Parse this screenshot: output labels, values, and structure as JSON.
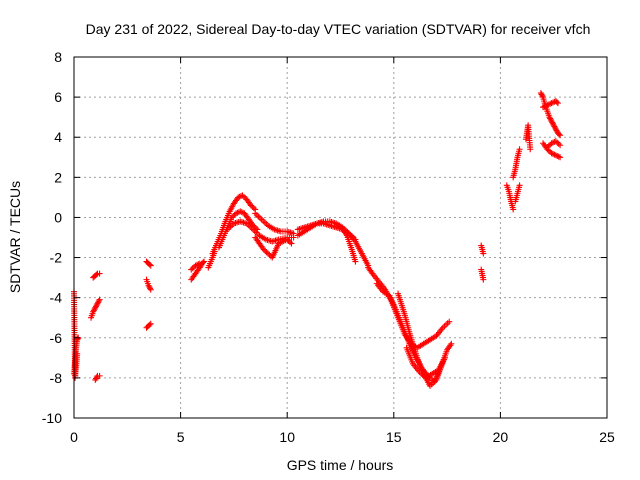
{
  "chart_data": {
    "type": "scatter",
    "title": "Day 231 of 2022, Sidereal Day-to-day VTEC variation (SDTVAR) for receiver vfch",
    "xlabel": "GPS time / hours",
    "ylabel": "SDTVAR / TECUs",
    "xlim": [
      0,
      25
    ],
    "ylim": [
      -10,
      8
    ],
    "x_ticks": [
      0,
      5,
      10,
      15,
      20,
      25
    ],
    "y_ticks": [
      -10,
      -8,
      -6,
      -4,
      -2,
      0,
      2,
      4,
      6,
      8
    ],
    "x_tick_labels": [
      "0",
      "5",
      "10",
      "15",
      "20",
      "25"
    ],
    "y_tick_labels": [
      "-10",
      "-8",
      "-6",
      "-4",
      "-2",
      "0",
      "2",
      "4",
      "6",
      "8"
    ],
    "grid": true,
    "marker": "+",
    "series": [
      {
        "name": "SDTVAR",
        "color": "#ff0000",
        "segments": [
          {
            "x": [
              0.0,
              0.05,
              0.1,
              0.15
            ],
            "y": [
              -3.7,
              -8.0,
              -7.5,
              -6.8
            ]
          },
          {
            "x": [
              0.0,
              0.05,
              0.1,
              0.15,
              0.2
            ],
            "y": [
              -7.8,
              -7.2,
              -6.5,
              -6.1,
              -6.0
            ]
          },
          {
            "x": [
              0.8,
              0.9,
              1.0,
              1.1,
              1.2
            ],
            "y": [
              -5.0,
              -4.7,
              -4.5,
              -4.3,
              -4.1
            ]
          },
          {
            "x": [
              0.9,
              1.0,
              1.1,
              1.2
            ],
            "y": [
              -3.0,
              -2.9,
              -2.8,
              -2.8
            ]
          },
          {
            "x": [
              1.0,
              1.1,
              1.2
            ],
            "y": [
              -8.1,
              -7.9,
              -7.9
            ]
          },
          {
            "x": [
              3.4,
              3.5,
              3.6
            ],
            "y": [
              -2.2,
              -2.3,
              -2.4
            ]
          },
          {
            "x": [
              3.4,
              3.5,
              3.6
            ],
            "y": [
              -3.1,
              -3.4,
              -3.6
            ]
          },
          {
            "x": [
              3.4,
              3.5,
              3.6
            ],
            "y": [
              -5.5,
              -5.4,
              -5.3
            ]
          },
          {
            "x": [
              5.5,
              5.7,
              5.9,
              6.0,
              6.1
            ],
            "y": [
              -3.1,
              -2.8,
              -2.5,
              -2.3,
              -2.2
            ]
          },
          {
            "x": [
              5.5,
              5.7,
              5.9
            ],
            "y": [
              -2.6,
              -2.4,
              -2.3
            ]
          },
          {
            "x": [
              6.3,
              6.5,
              6.6
            ],
            "y": [
              -2.5,
              -2.0,
              -1.7
            ]
          },
          {
            "x": [
              6.5,
              6.7,
              6.9,
              7.1,
              7.3,
              7.5,
              7.7,
              7.9,
              8.1,
              8.3,
              8.5
            ],
            "y": [
              -1.8,
              -1.3,
              -0.8,
              -0.2,
              0.3,
              0.7,
              1.0,
              1.1,
              0.9,
              0.6,
              0.4
            ]
          },
          {
            "x": [
              6.8,
              7.0,
              7.2,
              7.4,
              7.6,
              7.8,
              8.0,
              8.2,
              8.4,
              8.6
            ],
            "y": [
              -1.5,
              -1.0,
              -0.5,
              0.0,
              0.2,
              0.3,
              0.2,
              -0.1,
              -0.4,
              -0.6
            ]
          },
          {
            "x": [
              7.2,
              7.5,
              7.8,
              8.1,
              8.4,
              8.7,
              9.0,
              9.3,
              9.6,
              10.0,
              10.3
            ],
            "y": [
              -0.6,
              -0.3,
              -0.2,
              -0.3,
              -0.6,
              -0.9,
              -1.1,
              -1.2,
              -1.1,
              -1.0,
              -1.0
            ]
          },
          {
            "x": [
              8.5,
              8.7,
              8.9,
              9.1,
              9.3,
              9.6,
              10.0,
              10.2
            ],
            "y": [
              -1.0,
              -1.3,
              -1.6,
              -1.8,
              -2.0,
              -1.3,
              -1.1,
              -1.3
            ]
          },
          {
            "x": [
              8.5,
              8.8,
              9.1,
              9.4,
              9.7,
              10.0,
              10.3
            ],
            "y": [
              0.2,
              -0.1,
              -0.4,
              -0.6,
              -0.7,
              -0.7,
              -0.8
            ]
          },
          {
            "x": [
              10.5,
              10.8,
              11.1,
              11.4,
              11.7,
              12.0,
              12.3,
              12.6,
              12.9,
              13.2,
              13.5,
              13.8
            ],
            "y": [
              -0.9,
              -0.7,
              -0.5,
              -0.3,
              -0.3,
              -0.4,
              -0.5,
              -0.6,
              -0.8,
              -1.2,
              -1.8,
              -2.4
            ]
          },
          {
            "x": [
              10.5,
              10.8,
              11.1,
              11.4,
              11.7,
              12.0,
              12.3,
              12.6,
              12.9,
              13.2
            ],
            "y": [
              -0.6,
              -0.5,
              -0.4,
              -0.3,
              -0.2,
              -0.2,
              -0.3,
              -0.5,
              -0.8,
              -1.1
            ]
          },
          {
            "x": [
              12.4,
              12.6,
              12.8,
              13.0,
              13.2
            ],
            "y": [
              -0.4,
              -0.6,
              -0.9,
              -1.5,
              -2.2
            ]
          },
          {
            "x": [
              13.8,
              14.0,
              14.3,
              14.6,
              14.9,
              15.2,
              15.5,
              15.8,
              16.1,
              16.4,
              16.7,
              17.0,
              17.3,
              17.6
            ],
            "y": [
              -2.5,
              -2.8,
              -3.2,
              -3.6,
              -4.2,
              -5.0,
              -5.8,
              -6.3,
              -6.5,
              -6.3,
              -6.1,
              -5.9,
              -5.5,
              -5.2
            ]
          },
          {
            "x": [
              14.2,
              14.5,
              14.8,
              15.1,
              15.4,
              15.7,
              16.0,
              16.3,
              16.6,
              16.9,
              17.2,
              17.5,
              17.7
            ],
            "y": [
              -3.3,
              -3.7,
              -3.9,
              -4.6,
              -5.4,
              -6.2,
              -6.9,
              -7.5,
              -7.9,
              -8.2,
              -7.5,
              -6.6,
              -6.3
            ]
          },
          {
            "x": [
              15.2,
              15.5,
              15.8,
              16.1,
              16.4,
              16.7,
              17.0,
              17.3
            ],
            "y": [
              -3.8,
              -4.8,
              -6.0,
              -7.0,
              -7.8,
              -8.4,
              -8.1,
              -7.2
            ]
          },
          {
            "x": [
              15.6,
              15.9,
              16.2,
              16.5,
              16.8,
              17.1,
              17.4
            ],
            "y": [
              -6.5,
              -7.3,
              -7.7,
              -8.0,
              -7.8,
              -7.6,
              -7.0
            ]
          },
          {
            "x": [
              19.1,
              19.2
            ],
            "y": [
              -1.4,
              -1.8
            ]
          },
          {
            "x": [
              19.1,
              19.2
            ],
            "y": [
              -2.6,
              -3.1
            ]
          },
          {
            "x": [
              20.3,
              20.4,
              20.5,
              20.6
            ],
            "y": [
              1.6,
              1.3,
              0.8,
              0.4
            ]
          },
          {
            "x": [
              20.6,
              20.7,
              20.8,
              20.9
            ],
            "y": [
              2.0,
              2.4,
              3.0,
              3.4
            ]
          },
          {
            "x": [
              20.7,
              20.8,
              20.9
            ],
            "y": [
              0.8,
              1.2,
              1.6
            ]
          },
          {
            "x": [
              21.2,
              21.3,
              21.4
            ],
            "y": [
              3.9,
              4.6,
              3.4
            ]
          },
          {
            "x": [
              21.9,
              22.0,
              22.1,
              22.2,
              22.3,
              22.4,
              22.5,
              22.6,
              22.7,
              22.8
            ],
            "y": [
              6.2,
              6.0,
              5.6,
              5.3,
              5.0,
              4.8,
              4.6,
              4.4,
              4.2,
              4.1
            ]
          },
          {
            "x": [
              22.0,
              22.2,
              22.4,
              22.6,
              22.7
            ],
            "y": [
              5.5,
              5.6,
              5.7,
              5.8,
              5.7
            ]
          },
          {
            "x": [
              22.0,
              22.2,
              22.4,
              22.6,
              22.8
            ],
            "y": [
              3.7,
              3.4,
              3.2,
              3.1,
              3.0
            ]
          },
          {
            "x": [
              22.2,
              22.4,
              22.6,
              22.8
            ],
            "y": [
              3.5,
              3.7,
              3.8,
              3.6
            ]
          }
        ]
      }
    ]
  }
}
